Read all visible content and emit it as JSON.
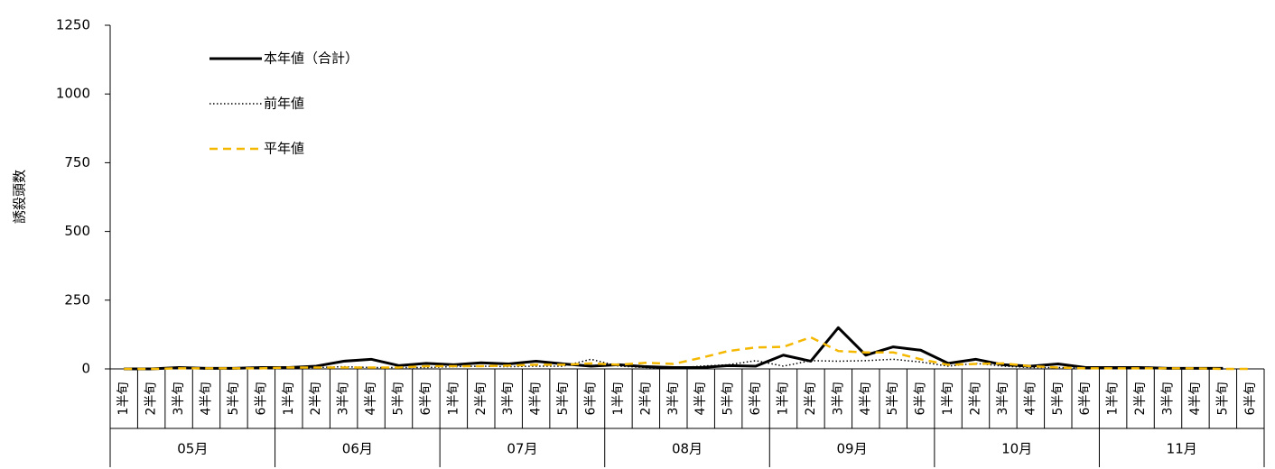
{
  "chart_data": {
    "type": "line",
    "ylabel": "誘殺頭数",
    "categories": [
      "1半旬",
      "2半旬",
      "3半旬",
      "4半旬",
      "5半旬",
      "6半旬",
      "1半旬",
      "2半旬",
      "3半旬",
      "4半旬",
      "5半旬",
      "6半旬",
      "1半旬",
      "2半旬",
      "3半旬",
      "4半旬",
      "5半旬",
      "6半旬",
      "1半旬",
      "2半旬",
      "3半旬",
      "4半旬",
      "5半旬",
      "6半旬",
      "1半旬",
      "2半旬",
      "3半旬",
      "4半旬",
      "5半旬",
      "6半旬",
      "1半旬",
      "2半旬",
      "3半旬",
      "4半旬",
      "5半旬",
      "6半旬",
      "1半旬",
      "2半旬",
      "3半旬",
      "4半旬",
      "5半旬",
      "6半旬"
    ],
    "groups": [
      "05月",
      "06月",
      "07月",
      "08月",
      "09月",
      "10月",
      "11月"
    ],
    "ylim": [
      0,
      1250
    ],
    "yticks": [
      0,
      250,
      500,
      750,
      1000,
      1250
    ],
    "legend": "top-left",
    "series": [
      {
        "name": "本年値（合計）",
        "color": "#000000",
        "style": "solid",
        "values": [
          0,
          0,
          5,
          2,
          2,
          5,
          5,
          10,
          28,
          35,
          12,
          20,
          15,
          22,
          18,
          28,
          18,
          10,
          15,
          8,
          5,
          5,
          12,
          10,
          50,
          28,
          150,
          50,
          80,
          68,
          20,
          35,
          15,
          10,
          18,
          5,
          5,
          5,
          2,
          2,
          2,
          null
        ]
      },
      {
        "name": "前年値",
        "color": "#000000",
        "style": "dotted",
        "values": [
          0,
          0,
          2,
          0,
          0,
          2,
          2,
          5,
          8,
          5,
          5,
          5,
          8,
          10,
          8,
          10,
          10,
          35,
          10,
          5,
          2,
          10,
          15,
          30,
          10,
          30,
          28,
          30,
          35,
          25,
          10,
          20,
          10,
          5,
          5,
          2,
          2,
          2,
          2,
          2,
          2,
          null
        ]
      },
      {
        "name": "平年値",
        "color": "#f5b800",
        "style": "dashed",
        "values": [
          0,
          0,
          2,
          2,
          2,
          2,
          5,
          5,
          5,
          5,
          5,
          10,
          10,
          10,
          12,
          15,
          15,
          20,
          15,
          22,
          18,
          40,
          65,
          78,
          80,
          115,
          65,
          60,
          60,
          35,
          15,
          18,
          20,
          10,
          5,
          2,
          2,
          2,
          2,
          2,
          0,
          0
        ]
      }
    ]
  }
}
